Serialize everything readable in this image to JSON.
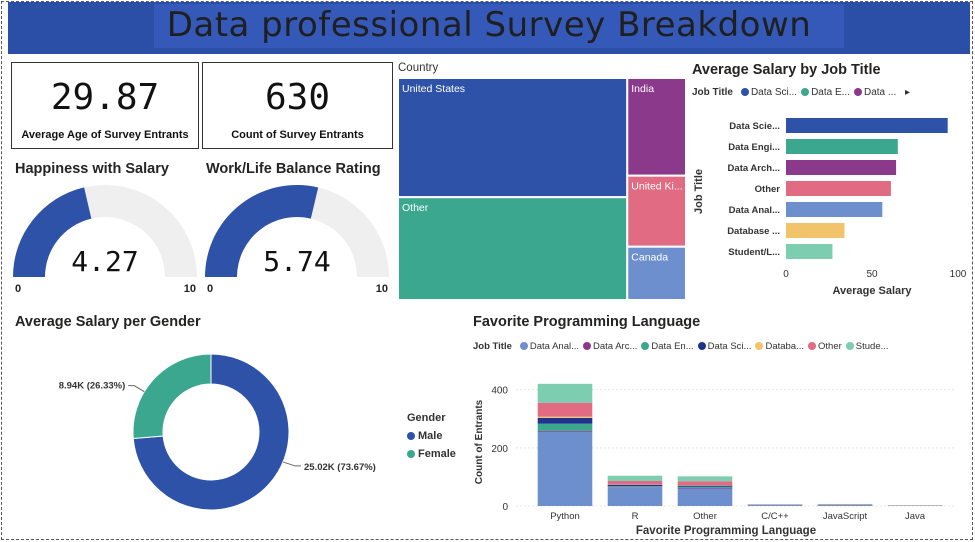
{
  "header": {
    "title": "Data professional Survey Breakdown"
  },
  "cards": [
    {
      "value": "29.87",
      "label": "Average Age of Survey Entrants"
    },
    {
      "value": "630",
      "label": "Count of Survey Entrants"
    }
  ],
  "colors": {
    "blue": "#2e52a8",
    "purple": "#8b3a8b",
    "teal": "#3aa78e",
    "navy": "#20338c",
    "yellow": "#f2c36b",
    "pink": "#e06b82",
    "mint": "#7dcdb0",
    "lightblue": "#6d8fce",
    "gauge_bg": "#efefef"
  },
  "chart_data": [
    {
      "id": "happiness",
      "type": "gauge",
      "title": "Happiness with Salary",
      "value": 4.27,
      "value_label": "4.27",
      "min": 0,
      "max": 10,
      "min_label": "0",
      "max_label": "10"
    },
    {
      "id": "worklife",
      "type": "gauge",
      "title": "Work/Life Balance Rating",
      "value": 5.74,
      "value_label": "5.74",
      "min": 0,
      "max": 10,
      "min_label": "0",
      "max_label": "10"
    },
    {
      "id": "country",
      "type": "treemap",
      "title": "Country",
      "items": [
        {
          "name": "United States",
          "value": 262
        },
        {
          "name": "Other",
          "value": 226
        },
        {
          "name": "India",
          "value": 55
        },
        {
          "name": "United Ki...",
          "value": 40
        },
        {
          "name": "Canada",
          "value": 30
        }
      ]
    },
    {
      "id": "salary_job",
      "type": "bar",
      "orientation": "horizontal",
      "title": "Average Salary by Job Title",
      "legend_title": "Job Title",
      "legend_items": [
        "Data Sci...",
        "Data E...",
        "Data ..."
      ],
      "categories": [
        "Data Scie...",
        "Data Engi...",
        "Data Arch...",
        "Other",
        "Data Anal...",
        "Database ...",
        "Student/L..."
      ],
      "values": [
        94,
        65,
        64,
        61,
        56,
        34,
        27
      ],
      "xlabel": "Average Salary",
      "ylabel": "Job Title",
      "xlim": [
        0,
        100
      ],
      "ticks": [
        "0",
        "50",
        "100"
      ]
    },
    {
      "id": "gender",
      "type": "pie",
      "donut": true,
      "title": "Average Salary per Gender",
      "legend_title": "Gender",
      "slices": [
        {
          "name": "Male",
          "value": 25.02,
          "label": "25.02K (73.67%)"
        },
        {
          "name": "Female",
          "value": 8.94,
          "label": "8.94K (26.33%)"
        }
      ]
    },
    {
      "id": "language",
      "type": "bar",
      "stacked": true,
      "title": "Favorite Programming Language",
      "legend_title": "Job Title",
      "legend_items": [
        "Data Anal...",
        "Data Arc...",
        "Data En...",
        "Data Sci...",
        "Databa...",
        "Other",
        "Stude..."
      ],
      "categories": [
        "Python",
        "R",
        "Other",
        "C/C++",
        "JavaScript",
        "Java"
      ],
      "series": [
        {
          "name": "Data Anal...",
          "values": [
            255,
            65,
            60,
            3,
            2,
            1
          ]
        },
        {
          "name": "Data Arc...",
          "values": [
            3,
            1,
            2,
            0,
            0,
            0
          ]
        },
        {
          "name": "Data En...",
          "values": [
            25,
            2,
            4,
            0,
            1,
            0
          ]
        },
        {
          "name": "Data Sci...",
          "values": [
            20,
            5,
            4,
            1,
            1,
            0
          ]
        },
        {
          "name": "Databa...",
          "values": [
            4,
            1,
            1,
            0,
            0,
            0
          ]
        },
        {
          "name": "Other",
          "values": [
            48,
            12,
            14,
            1,
            2,
            1
          ]
        },
        {
          "name": "Stude...",
          "values": [
            65,
            18,
            17,
            1,
            1,
            1
          ]
        }
      ],
      "xlabel": "Favorite Programming Language",
      "ylabel": "Count of Entrants",
      "ylim": [
        0,
        440
      ],
      "yticks": [
        0,
        200,
        400
      ]
    }
  ]
}
